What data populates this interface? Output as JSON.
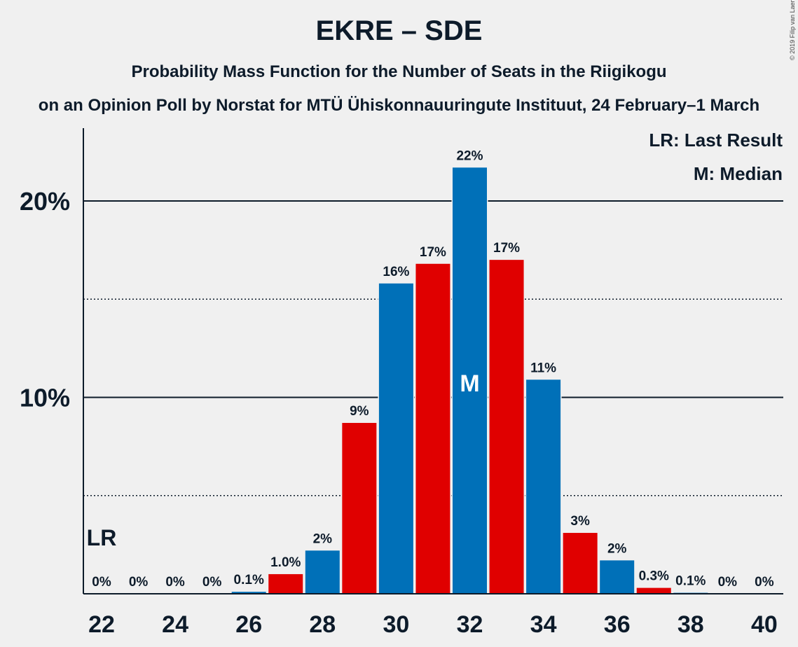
{
  "title": "EKRE – SDE",
  "subtitle": "Probability Mass Function for the Number of Seats in the Riigikogu",
  "subtitle2": "on an Opinion Poll by Norstat for MTÜ Ühiskonnauuringute Instituut, 24 February–1 March",
  "copyright": "© 2019 Filip van Laenen",
  "legend": {
    "last_result": "LR: Last Result",
    "median": "M: Median"
  },
  "markers": {
    "last_result_label": "LR",
    "last_result_seat": 22,
    "median_label": "M",
    "median_seat": 32
  },
  "colors": {
    "blue": "#0070b8",
    "red": "#e00000",
    "background": "#f0f0f0",
    "text": "#0d1b2a"
  },
  "chart_data": {
    "type": "bar",
    "x": [
      22,
      23,
      24,
      25,
      26,
      27,
      28,
      29,
      30,
      31,
      32,
      33,
      34,
      35,
      36,
      37,
      38,
      39,
      40
    ],
    "values": [
      0,
      0,
      0,
      0,
      0.1,
      1.0,
      2.2,
      8.7,
      15.8,
      16.8,
      21.7,
      17.0,
      10.9,
      3.1,
      1.7,
      0.3,
      0.05,
      0,
      0
    ],
    "data_labels": [
      "0%",
      "0%",
      "0%",
      "0%",
      "0.1%",
      "1.0%",
      "2%",
      "9%",
      "16%",
      "17%",
      "22%",
      "17%",
      "11%",
      "3%",
      "2%",
      "0.3%",
      "0.1%",
      "0%",
      "0%"
    ],
    "bar_colors": [
      "blue",
      "red",
      "blue",
      "red",
      "blue",
      "red",
      "blue",
      "red",
      "blue",
      "red",
      "blue",
      "red",
      "blue",
      "red",
      "blue",
      "red",
      "blue",
      "red",
      "blue"
    ],
    "x_tick_labels": [
      "22",
      "24",
      "26",
      "28",
      "30",
      "32",
      "34",
      "36",
      "38",
      "40"
    ],
    "y_tick_labels": [
      "10%",
      "20%"
    ],
    "y_ticks": [
      10,
      20
    ],
    "y_minor_gridlines": [
      5,
      15
    ],
    "ylim": [
      0,
      23.7
    ],
    "grid": true
  }
}
